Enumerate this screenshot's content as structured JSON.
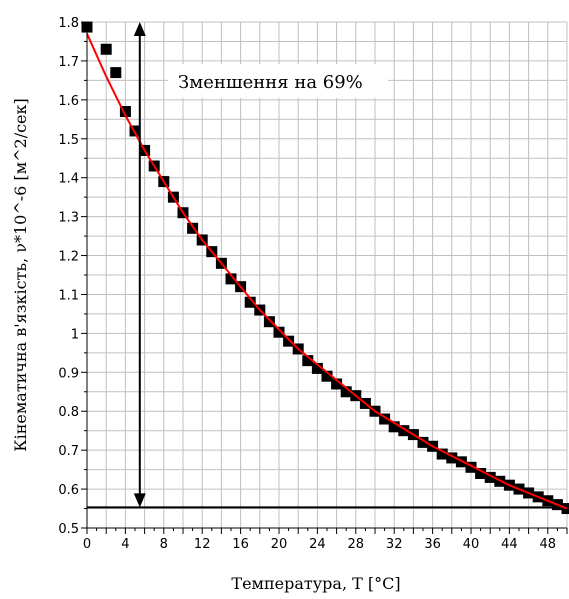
{
  "chart_data": {
    "type": "scatter",
    "title": "",
    "xlabel": "Температура, T [°C]",
    "ylabel": "Кінематична в'язкість, ν*10^-6 [м^2/сек]",
    "xlim": [
      0,
      50
    ],
    "ylim": [
      0.5,
      1.8
    ],
    "xticks": [
      "0",
      "4",
      "8",
      "12",
      "16",
      "20",
      "24",
      "28",
      "32",
      "36",
      "40",
      "44",
      "48"
    ],
    "yticks": [
      "0.5",
      "0.6",
      "0.7",
      "0.8",
      "0.9",
      "1",
      "1.1",
      "1.2",
      "1.3",
      "1.4",
      "1.5",
      "1.6",
      "1.7",
      "1.8"
    ],
    "grid": true,
    "series": [
      {
        "kind": "markers",
        "marker": "square",
        "color": "#000000",
        "x": [
          0,
          2,
          3,
          4,
          5,
          6,
          7,
          8,
          9,
          10,
          11,
          12,
          13,
          14,
          15,
          16,
          17,
          18,
          19,
          20,
          21,
          22,
          23,
          24,
          25,
          26,
          27,
          28,
          29,
          30,
          31,
          32,
          33,
          34,
          35,
          36,
          37,
          38,
          39,
          40,
          41,
          42,
          43,
          44,
          45,
          46,
          47,
          48,
          49,
          50
        ],
        "y": [
          1.787,
          1.73,
          1.67,
          1.57,
          1.52,
          1.47,
          1.43,
          1.39,
          1.35,
          1.31,
          1.27,
          1.24,
          1.21,
          1.18,
          1.14,
          1.12,
          1.08,
          1.06,
          1.03,
          1.003,
          0.98,
          0.96,
          0.93,
          0.91,
          0.89,
          0.87,
          0.85,
          0.84,
          0.82,
          0.8,
          0.78,
          0.76,
          0.75,
          0.74,
          0.72,
          0.71,
          0.69,
          0.68,
          0.67,
          0.656,
          0.64,
          0.63,
          0.62,
          0.61,
          0.6,
          0.59,
          0.58,
          0.57,
          0.56,
          0.55
        ]
      },
      {
        "kind": "fit-line",
        "color": "#ff0000",
        "x": [
          0,
          2,
          4,
          6,
          8,
          10,
          12,
          14,
          16,
          18,
          20,
          22,
          24,
          26,
          28,
          30,
          32,
          34,
          36,
          38,
          40,
          42,
          44,
          46,
          48,
          50
        ],
        "y": [
          1.77,
          1.66,
          1.56,
          1.47,
          1.39,
          1.31,
          1.24,
          1.18,
          1.12,
          1.06,
          1.01,
          0.96,
          0.92,
          0.88,
          0.84,
          0.8,
          0.77,
          0.74,
          0.71,
          0.685,
          0.66,
          0.635,
          0.61,
          0.59,
          0.57,
          0.55
        ]
      }
    ],
    "reference_line": {
      "y": 0.553,
      "color": "#000000"
    },
    "double_arrow": {
      "x": 5.5,
      "y_from": 0.553,
      "y_to": 1.8,
      "color": "#000000"
    },
    "annotation": {
      "text": "Зменшення на 69%",
      "anchor": "upper"
    }
  }
}
